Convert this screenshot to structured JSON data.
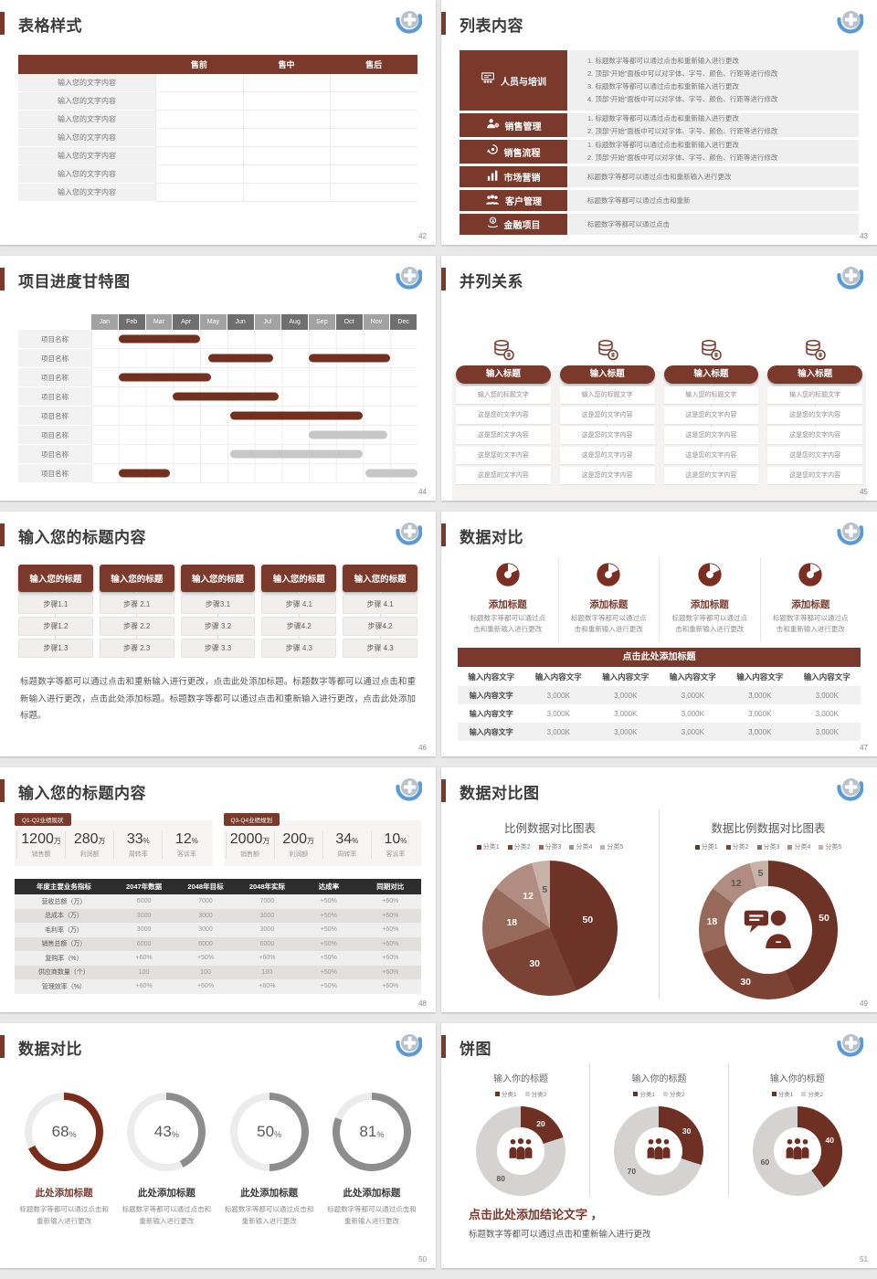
{
  "colors": {
    "accent": "#7a392b",
    "gantt_primary": "#72301f",
    "gantt_muted": "#c7c7c7",
    "month_head_light": "#a2a2a2",
    "month_head_dark": "#6f6f6f",
    "pie_palette": [
      "#6d3327",
      "#7c4335",
      "#97695b",
      "#b08d80",
      "#c9b2a7"
    ],
    "gauge_fill_accent": "#7a2c1a",
    "gauge_fill_gray": "#8d8d8d",
    "gauge_track": "#ececec",
    "donut_dark": "#6d3023",
    "donut_gray": "#d5d3d2"
  },
  "slide42": {
    "title": "表格样式",
    "page_num": "42",
    "col_headers": [
      "售前",
      "售中",
      "售后"
    ],
    "row_label": "输入您的文字内容",
    "row_count": 7
  },
  "slide43": {
    "title": "列表内容",
    "page_num": "43",
    "items": [
      {
        "icon": "training-board-icon",
        "label": "人员与培训",
        "lines": [
          "1.  标题数字等都可以通过点击和重新输入进行更改",
          "2.  顶部“开始”面板中可以对字体、字号、颜色、行距等进行修改",
          "3.  标题数字等都可以通过点击和重新输入进行更改",
          "4.  顶部“开始”面板中可以对字体、字号、颜色、行距等进行修改"
        ]
      },
      {
        "icon": "sales-manager-icon",
        "label": "销售管理",
        "lines": [
          "1.  标题数字等都可以通过点击和重新输入进行更改",
          "2.  顶部“开始”面板中可以对字体、字号、颜色、行距等进行修改"
        ]
      },
      {
        "icon": "sales-process-icon",
        "label": "销售流程",
        "lines": [
          "1.  标题数字等都可以通过点击和重新输入进行更改",
          "2.  顶部“开始”面板中可以对字体、字号、颜色、行距等进行修改"
        ]
      },
      {
        "icon": "marketing-chart-icon",
        "label": "市场营销",
        "lines": [
          "标题数字等都可以通过点击和重新输入进行更改"
        ]
      },
      {
        "icon": "customer-group-icon",
        "label": "客户管理",
        "lines": [
          "标题数字等都可以通过点击和重新"
        ]
      },
      {
        "icon": "finance-coin-icon",
        "label": "金融项目",
        "lines": [
          "标题数字等都可以通过点击"
        ]
      }
    ]
  },
  "slide44": {
    "title": "项目进度甘特图",
    "page_num": "44",
    "row_label": "项目名称"
  },
  "slide45": {
    "title": "并列关系",
    "page_num": "45",
    "columns": 4,
    "header": "输入标题",
    "first_cell": "输入您的标题文字",
    "cell": "这是您的文字内容",
    "cell_rows": 5
  },
  "slide46": {
    "title": "输入您的标题内容",
    "page_num": "46",
    "header": "输入您的标题",
    "columns": [
      [
        "步骤1.1",
        "步骤1.2",
        "步骤1.3"
      ],
      [
        "步骤 2.1",
        "步骤 2.2",
        "步骤 2.3"
      ],
      [
        "步骤3.1",
        "步骤 3.2",
        "步骤 3.3"
      ],
      [
        "步骤 4.1",
        "步骤4.2",
        "步骤 4.3"
      ],
      [
        "步骤 4.1",
        "步骤4.2",
        "步骤 4.3"
      ]
    ],
    "paragraph": "标题数字等都可以通过点击和重新输入进行更改，点击此处添加标题。标题数字等都可以通过点击和重新输入进行更改，点击此处添加标题。标题数字等都可以通过点击和重新输入进行更改，点击此处添加标题。"
  },
  "slide47": {
    "title": "数据对比",
    "page_num": "47",
    "feature_count": 4,
    "feature_title": "添加标题",
    "feature_caption": "标题数字等都可以通过点击和重新输入进行更改",
    "banner": "点击此处添加标题",
    "table": {
      "header": "输入内容文字",
      "cols": 6,
      "row_label": "输入内容文字",
      "value": "3,000K",
      "rows": 3
    }
  },
  "slide48": {
    "title": "输入您的标题内容",
    "page_num": "48",
    "groups": [
      {
        "tag": "Q1-Q2业绩现状",
        "stats": [
          {
            "value": "1200",
            "unit": "万",
            "label": "销售额"
          },
          {
            "value": "280",
            "unit": "万",
            "label": "利润额"
          },
          {
            "value": "33",
            "unit": "%",
            "label": "周转率"
          },
          {
            "value": "12",
            "unit": "%",
            "label": "客诉率"
          }
        ]
      },
      {
        "tag": "Q3-Q4业绩规划",
        "stats": [
          {
            "value": "2000",
            "unit": "万",
            "label": "销售额"
          },
          {
            "value": "200",
            "unit": "万",
            "label": "利润额"
          },
          {
            "value": "34",
            "unit": "%",
            "label": "周转率"
          },
          {
            "value": "10",
            "unit": "%",
            "label": "客诉率"
          }
        ]
      }
    ],
    "table": {
      "headers": [
        "年度主要业务指标",
        "2047年数据",
        "2048年目标",
        "2048年实际",
        "达成率",
        "同期对比"
      ],
      "rows": [
        [
          "营收总额（万）",
          "6000",
          "7000",
          "7000",
          "+50%",
          "+60%"
        ],
        [
          "总成本（万）",
          "3000",
          "3000",
          "3000",
          "+50%",
          "+60%"
        ],
        [
          "毛利率（万）",
          "3000",
          "3000",
          "3000",
          "+50%",
          "+60%"
        ],
        [
          "销售总额（万）",
          "6000",
          "6000",
          "6000",
          "+50%",
          "+60%"
        ],
        [
          "复购率（%）",
          "+60%",
          "+50%",
          "+60%",
          "+50%",
          "+60%"
        ],
        [
          "供应商数量（个）",
          "100",
          "100",
          "100",
          "+50%",
          "+60%"
        ],
        [
          "管理效率（%）",
          "+60%",
          "+50%",
          "+60%",
          "+50%",
          "+60%"
        ]
      ]
    }
  },
  "slide49": {
    "title": "数据对比图",
    "page_num": "49",
    "left_title": "比例数据对比图表",
    "right_title": "数据比例数据对比图表"
  },
  "slide50": {
    "title": "数据对比",
    "page_num": "50",
    "item_title": "此处添加标题",
    "caption": "标题数字等都可以通过点击和重新输入进行更改"
  },
  "slide51": {
    "title": "饼图",
    "page_num": "51",
    "item_title": "输入你的标题",
    "conclusion_title": "点击此处添加结论文字 ，",
    "conclusion_text": "标题数字等都可以通过点击和重新输入进行更改"
  },
  "chart_data": [
    {
      "type": "bar",
      "subtype": "gantt",
      "title": "项目进度甘特图",
      "x_categories": [
        "Jan",
        "Feb",
        "Mar",
        "Apr",
        "May",
        "Jun",
        "Jul",
        "Aug",
        "Sep",
        "Oct",
        "Nov",
        "Dec"
      ],
      "row_label": "项目名称",
      "rows": [
        [
          {
            "start": 1.0,
            "end": 4.0,
            "type": "primary"
          }
        ],
        [
          {
            "start": 4.3,
            "end": 6.7,
            "type": "primary"
          },
          {
            "start": 8.0,
            "end": 11.0,
            "type": "primary"
          }
        ],
        [
          {
            "start": 1.0,
            "end": 4.4,
            "type": "primary"
          }
        ],
        [
          {
            "start": 3.0,
            "end": 6.9,
            "type": "primary"
          }
        ],
        [
          {
            "start": 5.1,
            "end": 10.0,
            "type": "primary"
          }
        ],
        [
          {
            "start": 8.0,
            "end": 10.9,
            "type": "muted"
          }
        ],
        [
          {
            "start": 5.1,
            "end": 10.0,
            "type": "muted"
          }
        ],
        [
          {
            "start": 1.0,
            "end": 2.9,
            "type": "primary"
          },
          {
            "start": 10.1,
            "end": 12.0,
            "type": "muted"
          }
        ]
      ]
    },
    {
      "type": "pie",
      "title": "比例数据对比图表",
      "labels": [
        "分类1",
        "分类2",
        "分类3",
        "分类4",
        "分类5"
      ],
      "values": [
        50,
        30,
        18,
        12,
        5
      ],
      "legend_position": "top",
      "donut": false
    },
    {
      "type": "pie",
      "title": "数据比例数据对比图表",
      "labels": [
        "分类1",
        "分类2",
        "分类3",
        "分类4",
        "分类5"
      ],
      "values": [
        50,
        30,
        18,
        12,
        5
      ],
      "legend_position": "top",
      "donut": true
    },
    {
      "type": "pie",
      "subtype": "gauge-set",
      "title": "数据对比",
      "unit": "%",
      "values": [
        68,
        43,
        50,
        81
      ]
    },
    {
      "type": "pie",
      "subtype": "donut-set",
      "title": "饼图",
      "labels": [
        "分类1",
        "分类2"
      ],
      "series": [
        {
          "name": "输入你的标题",
          "values": [
            20,
            80
          ]
        },
        {
          "name": "输入你的标题",
          "values": [
            30,
            70
          ]
        },
        {
          "name": "输入你的标题",
          "values": [
            40,
            60
          ]
        }
      ]
    }
  ]
}
